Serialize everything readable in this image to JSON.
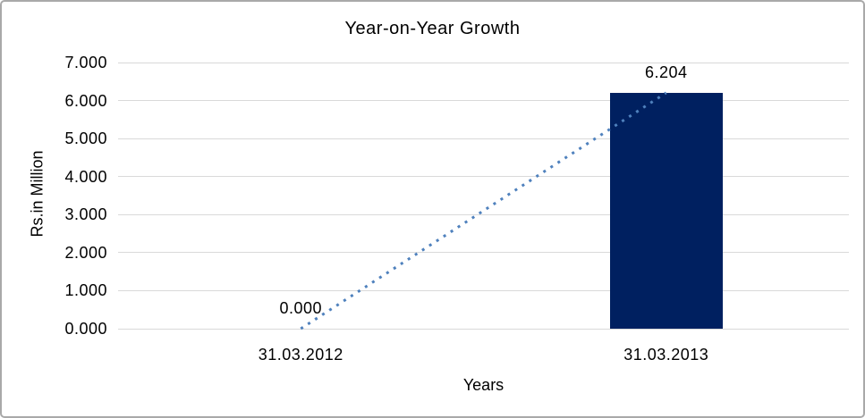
{
  "chart_data": {
    "type": "bar",
    "title": "Year-on-Year Growth",
    "xlabel": "Years",
    "ylabel": "Rs.in Million",
    "categories": [
      "31.03.2012",
      "31.03.2013"
    ],
    "values": [
      0,
      6.204
    ],
    "data_labels": [
      "0.000",
      "6.204"
    ],
    "y_ticks": [
      "0.000",
      "1.000",
      "2.000",
      "3.000",
      "4.000",
      "5.000",
      "6.000",
      "7.000"
    ],
    "ylim": [
      0,
      7
    ],
    "grid": true,
    "legend": "none",
    "bar_color": "#002060",
    "gridline_color": "#d9d9d9",
    "text_color": "#000000",
    "trendline": {
      "type": "linear",
      "style": "dotted",
      "color": "#4f81bd",
      "from_point": [
        0,
        0
      ],
      "to_point": [
        1,
        6.204
      ]
    }
  }
}
